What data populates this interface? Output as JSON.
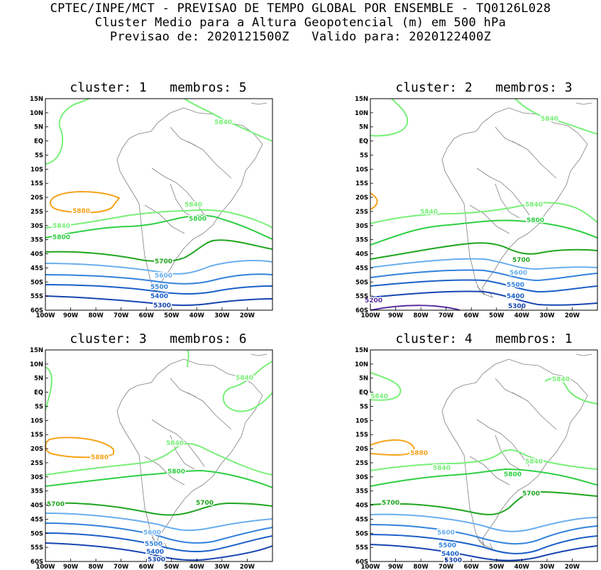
{
  "header": {
    "line1": "CPTEC/INPE/MCT - PREVISAO DE TEMPO GLOBAL POR ENSEMBLE - TQ0126L028",
    "line2": "Cluster Medio para a Altura Geopotencial (m) em 500 hPa",
    "line3": "Previsao de: 2020121500Z   Valido para: 2020122400Z"
  },
  "axes": {
    "y_labels": [
      "15N",
      "10N",
      "5N",
      "EQ",
      "5S",
      "10S",
      "15S",
      "20S",
      "25S",
      "30S",
      "35S",
      "40S",
      "45S",
      "50S",
      "55S",
      "60S"
    ],
    "x_labels": [
      "100W",
      "90W",
      "80W",
      "70W",
      "60W",
      "50W",
      "40W",
      "30W",
      "20W"
    ]
  },
  "colors": {
    "c5880": "#f5a31b",
    "c5840": "#78f078",
    "c5800": "#2fcf43",
    "c5700": "#1fa51f",
    "c5600": "#6aaeee",
    "c5500": "#3382dc",
    "c5400": "#1a5fc8",
    "c5300": "#1745b0",
    "c5200": "#5a2fa0",
    "land": "#7f7f7f"
  },
  "panels": [
    {
      "title": "cluster: 1   membros: 5",
      "labels": {
        "c5880": "5880",
        "c5840a": "5840",
        "c5840b": "5840",
        "c5840c": "5840",
        "c5800a": "5800",
        "c5800b": "5800",
        "c5700": "5700",
        "c5600": "5600",
        "c5500": "5500",
        "c5400": "5400",
        "c5300": "5300"
      }
    },
    {
      "title": "cluster: 2   membros: 3",
      "labels": {
        "c5840a": "5840",
        "c5840b": "5840",
        "c5840c": "5840",
        "c5800": "5800",
        "c5700": "5700",
        "c5600": "5600",
        "c5500": "5500",
        "c5400": "5400",
        "c5300": "5300",
        "c5200": "5200"
      }
    },
    {
      "title": "cluster: 3   membros: 6",
      "labels": {
        "c5880": "5880",
        "c5840a": "5840",
        "c5840b": "5840",
        "c5800": "5800",
        "c5700a": "5700",
        "c5700b": "5700",
        "c5600": "5600",
        "c5500": "5500",
        "c5400": "5400",
        "c5300": "5300"
      }
    },
    {
      "title": "cluster: 4   membros: 1",
      "labels": {
        "c5880": "5880",
        "c5840a": "5840",
        "c5840b": "5840",
        "c5840c": "5840",
        "c5840d": "5840",
        "c5800": "5800",
        "c5700a": "5700",
        "c5700b": "5700",
        "c5600": "5600",
        "c5500": "5500",
        "c5400": "5400",
        "c5300": "5300"
      }
    }
  ]
}
